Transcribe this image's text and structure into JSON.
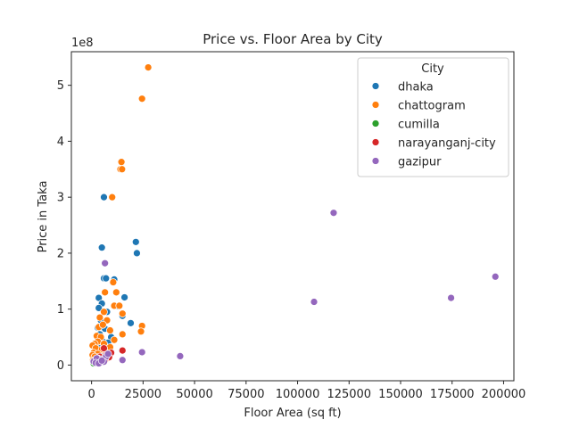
{
  "chart_data": {
    "type": "scatter",
    "title": "Price vs. Floor Area by City",
    "xlabel": "Floor Area (sq ft)",
    "ylabel": "Price in Taka",
    "y_offset_label": "1e8",
    "xlim": [
      -9800,
      205000
    ],
    "ylim": [
      -28000000.0,
      560000000.0
    ],
    "xticks": [
      0,
      25000,
      50000,
      75000,
      100000,
      125000,
      150000,
      175000,
      200000
    ],
    "xtick_labels": [
      "0",
      "25000",
      "50000",
      "75000",
      "100000",
      "125000",
      "150000",
      "175000",
      "200000"
    ],
    "yticks": [
      0,
      100000000,
      200000000,
      300000000,
      400000000,
      500000000
    ],
    "ytick_labels": [
      "0",
      "1",
      "2",
      "3",
      "4",
      "5"
    ],
    "grid": false,
    "legend": {
      "title": "City",
      "placement": "top-right"
    },
    "series": [
      {
        "name": "dhaka",
        "color": "#1f77b4",
        "points": [
          [
            6000,
            300000000
          ],
          [
            5000,
            210000000
          ],
          [
            21500,
            220000000
          ],
          [
            22000,
            200000000
          ],
          [
            6000,
            155000000
          ],
          [
            7000,
            155000000
          ],
          [
            11000,
            153000000
          ],
          [
            16000,
            121000000
          ],
          [
            3500,
            120000000
          ],
          [
            5000,
            110000000
          ],
          [
            3500,
            102000000
          ],
          [
            13000,
            105000000
          ],
          [
            7500,
            95000000
          ],
          [
            15000,
            88000000
          ],
          [
            19000,
            75000000
          ],
          [
            4500,
            80000000
          ],
          [
            3000,
            67000000
          ],
          [
            6500,
            65000000
          ],
          [
            4000,
            55000000
          ],
          [
            9500,
            50000000
          ],
          [
            3000,
            48000000
          ],
          [
            5500,
            42000000
          ],
          [
            2500,
            38000000
          ],
          [
            7000,
            33000000
          ],
          [
            4000,
            30000000
          ],
          [
            2000,
            27000000
          ],
          [
            3000,
            22000000
          ],
          [
            6000,
            20000000
          ],
          [
            1500,
            17000000
          ],
          [
            2500,
            14000000
          ],
          [
            1800,
            11000000
          ],
          [
            3500,
            9000000
          ],
          [
            1200,
            7000000
          ],
          [
            2200,
            6000000
          ],
          [
            1000,
            5000000
          ],
          [
            4500,
            12000000
          ],
          [
            8000,
            40000000
          ],
          [
            2800,
            25000000
          ]
        ]
      },
      {
        "name": "chattogram",
        "color": "#ff7f0e",
        "points": [
          [
            27500,
            532000000
          ],
          [
            24500,
            476000000
          ],
          [
            14500,
            363000000
          ],
          [
            14000,
            350000000
          ],
          [
            14800,
            350000000
          ],
          [
            10000,
            300000000
          ],
          [
            10500,
            148000000
          ],
          [
            6500,
            130000000
          ],
          [
            12000,
            130000000
          ],
          [
            11000,
            106000000
          ],
          [
            13500,
            106000000
          ],
          [
            6000,
            95000000
          ],
          [
            15000,
            92000000
          ],
          [
            4000,
            85000000
          ],
          [
            7500,
            80000000
          ],
          [
            24500,
            70000000
          ],
          [
            24000,
            60000000
          ],
          [
            3500,
            68000000
          ],
          [
            5500,
            72000000
          ],
          [
            9000,
            62000000
          ],
          [
            15000,
            55000000
          ],
          [
            2500,
            52000000
          ],
          [
            4500,
            50000000
          ],
          [
            11000,
            45000000
          ],
          [
            3000,
            42000000
          ],
          [
            1500,
            38000000
          ],
          [
            500,
            35000000
          ],
          [
            2000,
            30000000
          ],
          [
            5000,
            28000000
          ],
          [
            8000,
            25000000
          ],
          [
            1000,
            22000000
          ],
          [
            3000,
            20000000
          ],
          [
            500,
            18000000
          ],
          [
            1500,
            15000000
          ],
          [
            4000,
            12000000
          ],
          [
            2500,
            10000000
          ],
          [
            600,
            8000000
          ],
          [
            800,
            6000000
          ],
          [
            6000,
            38000000
          ],
          [
            9000,
            32000000
          ]
        ]
      },
      {
        "name": "cumilla",
        "color": "#2ca02c",
        "points": [
          [
            1200,
            4000000
          ],
          [
            1500,
            5500000
          ],
          [
            2000,
            6000000
          ],
          [
            1800,
            3500000
          ],
          [
            2500,
            7000000
          ],
          [
            1000,
            3000000
          ]
        ]
      },
      {
        "name": "narayanganj-city",
        "color": "#d62728",
        "points": [
          [
            15000,
            26000000
          ],
          [
            6000,
            30000000
          ],
          [
            9500,
            22000000
          ],
          [
            4000,
            15000000
          ],
          [
            7000,
            18000000
          ],
          [
            3000,
            12000000
          ],
          [
            2000,
            9000000
          ],
          [
            5000,
            10000000
          ],
          [
            1500,
            7000000
          ],
          [
            8500,
            14000000
          ],
          [
            2500,
            5000000
          ],
          [
            6500,
            8000000
          ]
        ]
      },
      {
        "name": "gazipur",
        "color": "#9467bd",
        "points": [
          [
            6500,
            182000000
          ],
          [
            117500,
            272000000
          ],
          [
            196000,
            158000000
          ],
          [
            174500,
            120000000
          ],
          [
            108000,
            113000000
          ],
          [
            24500,
            23000000
          ],
          [
            43000,
            16000000
          ],
          [
            15000,
            9000000
          ],
          [
            5500,
            5000000
          ],
          [
            1500,
            5000000
          ],
          [
            1000,
            6500000
          ],
          [
            3000,
            7000000
          ],
          [
            4500,
            10000000
          ],
          [
            2500,
            12000000
          ],
          [
            7000,
            15000000
          ],
          [
            6000,
            6000000
          ],
          [
            2000,
            4000000
          ],
          [
            8000,
            20000000
          ],
          [
            3500,
            3000000
          ],
          [
            5000,
            8000000
          ]
        ]
      }
    ]
  }
}
